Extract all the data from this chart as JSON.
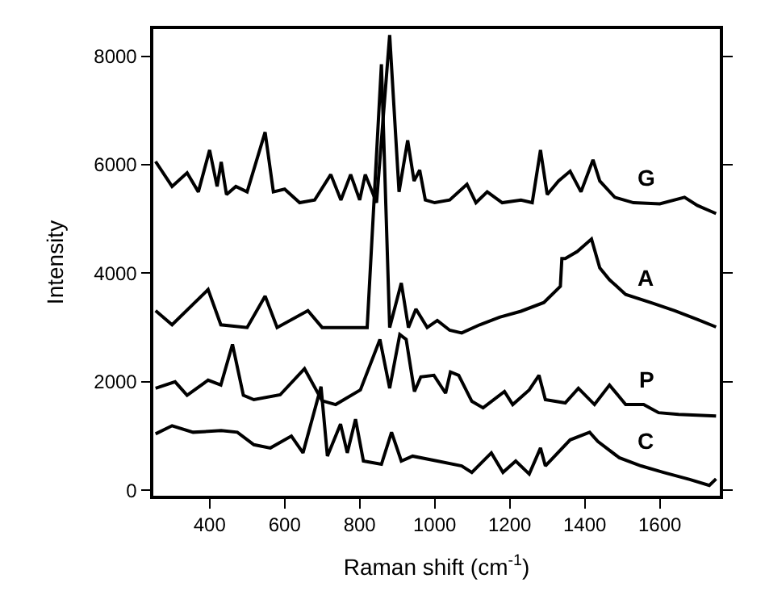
{
  "chart_data": {
    "type": "line",
    "xlabel": "Raman shift (cm$^{-1}$)",
    "ylabel": "Intensity",
    "xlim": [
      250,
      1760
    ],
    "ylim": [
      -100,
      8500
    ],
    "xticks": [
      400,
      600,
      800,
      1000,
      1200,
      1400,
      1600
    ],
    "yticks": [
      0,
      2000,
      4000,
      6000,
      8000
    ],
    "legend": false,
    "marker": "none",
    "line_style": "solid",
    "series": [
      {
        "name": "G",
        "color": "#000000",
        "x": [
          256,
          300,
          340,
          370,
          400,
          420,
          431,
          445,
          470,
          500,
          548,
          570,
          600,
          640,
          680,
          723,
          750,
          776,
          800,
          815,
          845,
          880,
          905,
          928,
          945,
          960,
          975,
          1000,
          1040,
          1086,
          1110,
          1140,
          1180,
          1230,
          1260,
          1282,
          1300,
          1330,
          1361,
          1390,
          1422,
          1440,
          1480,
          1530,
          1600,
          1666,
          1700,
          1750
        ],
        "values": [
          6060,
          5600,
          5850,
          5500,
          6270,
          5600,
          6050,
          5450,
          5600,
          5500,
          6600,
          5500,
          5550,
          5300,
          5350,
          5820,
          5350,
          5820,
          5350,
          5820,
          5300,
          8390,
          5500,
          6450,
          5700,
          5900,
          5350,
          5300,
          5350,
          5640,
          5300,
          5500,
          5300,
          5350,
          5300,
          6270,
          5450,
          5700,
          5880,
          5500,
          6090,
          5700,
          5400,
          5300,
          5280,
          5400,
          5250,
          5100
        ]
      },
      {
        "name": "A",
        "color": "#000000",
        "x": [
          256,
          300,
          396,
          430,
          500,
          548,
          580,
          662,
          700,
          760,
          820,
          858,
          880,
          911,
          930,
          950,
          980,
          1007,
          1040,
          1072,
          1120,
          1173,
          1230,
          1291,
          1335,
          1339,
          1348,
          1380,
          1418,
          1440,
          1466,
          1509,
          1580,
          1640,
          1700,
          1750
        ],
        "values": [
          3310,
          3050,
          3700,
          3050,
          3000,
          3580,
          3000,
          3310,
          3000,
          3000,
          3000,
          7850,
          3000,
          3820,
          3000,
          3340,
          3000,
          3130,
          2950,
          2900,
          3050,
          3190,
          3300,
          3460,
          3760,
          4270,
          4270,
          4400,
          4630,
          4100,
          3880,
          3610,
          3450,
          3310,
          3150,
          3010
        ]
      },
      {
        "name": "P",
        "color": "#000000",
        "x": [
          256,
          308,
          340,
          396,
          430,
          461,
          490,
          518,
          588,
          653,
          700,
          736,
          802,
          854,
          880,
          907,
          924,
          946,
          963,
          998,
          1029,
          1042,
          1064,
          1099,
          1129,
          1186,
          1208,
          1252,
          1278,
          1295,
          1348,
          1383,
          1426,
          1466,
          1509,
          1557,
          1597,
          1650,
          1750
        ],
        "values": [
          1880,
          2000,
          1750,
          2030,
          1940,
          2690,
          1750,
          1670,
          1760,
          2240,
          1650,
          1580,
          1850,
          2780,
          1880,
          2870,
          2780,
          1820,
          2090,
          2120,
          1790,
          2180,
          2120,
          1640,
          1520,
          1820,
          1580,
          1850,
          2120,
          1670,
          1610,
          1880,
          1580,
          1940,
          1580,
          1580,
          1430,
          1400,
          1370
        ]
      },
      {
        "name": "C",
        "color": "#000000",
        "x": [
          256,
          300,
          356,
          431,
          474,
          518,
          562,
          618,
          649,
          697,
          714,
          749,
          767,
          789,
          810,
          858,
          885,
          911,
          941,
          1007,
          1072,
          1099,
          1151,
          1182,
          1216,
          1252,
          1282,
          1295,
          1361,
          1413,
          1435,
          1492,
          1550,
          1610,
          1680,
          1732,
          1750
        ],
        "values": [
          1040,
          1190,
          1070,
          1100,
          1070,
          840,
          780,
          1000,
          690,
          1910,
          630,
          1220,
          690,
          1310,
          540,
          480,
          1070,
          540,
          630,
          540,
          450,
          330,
          690,
          330,
          540,
          300,
          780,
          450,
          930,
          1070,
          900,
          600,
          450,
          330,
          200,
          90,
          210
        ]
      }
    ]
  }
}
